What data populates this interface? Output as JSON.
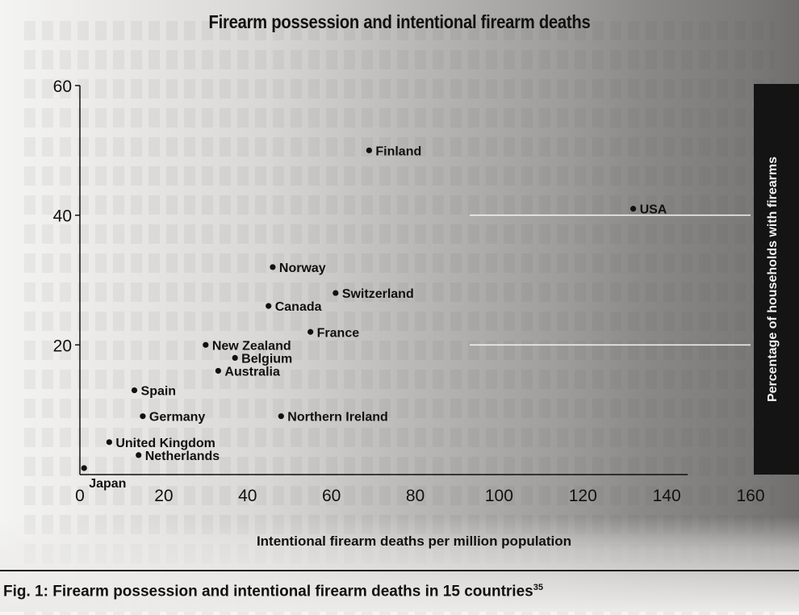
{
  "chart_data": {
    "type": "scatter",
    "title": "Firearm possession and intentional firearm deaths",
    "xlabel": "Intentional firearm deaths per million population",
    "ylabel": "Percentage of households with firearms",
    "xlim": [
      0,
      160
    ],
    "ylim": [
      0,
      60
    ],
    "xticks": [
      0,
      20,
      40,
      60,
      80,
      100,
      120,
      140,
      160
    ],
    "yticks": [
      20,
      40,
      60
    ],
    "grid": "horizontal lines at 20 and 40 on the right portion",
    "points": [
      {
        "label": "Japan",
        "x": 1,
        "y": 1
      },
      {
        "label": "Netherlands",
        "x": 14,
        "y": 3
      },
      {
        "label": "United Kingdom",
        "x": 7,
        "y": 5
      },
      {
        "label": "Germany",
        "x": 15,
        "y": 9
      },
      {
        "label": "Spain",
        "x": 13,
        "y": 13
      },
      {
        "label": "Northern Ireland",
        "x": 48,
        "y": 9
      },
      {
        "label": "Australia",
        "x": 33,
        "y": 16
      },
      {
        "label": "Belgium",
        "x": 37,
        "y": 18
      },
      {
        "label": "New Zealand",
        "x": 30,
        "y": 20
      },
      {
        "label": "France",
        "x": 55,
        "y": 22
      },
      {
        "label": "Canada",
        "x": 45,
        "y": 26
      },
      {
        "label": "Switzerland",
        "x": 61,
        "y": 28
      },
      {
        "label": "Norway",
        "x": 46,
        "y": 32
      },
      {
        "label": "Finland",
        "x": 69,
        "y": 50
      },
      {
        "label": "USA",
        "x": 132,
        "y": 41
      }
    ]
  },
  "caption": {
    "text": "Fig. 1: Firearm possession and intentional firearm deaths in 15 countries",
    "superscript": "35"
  }
}
